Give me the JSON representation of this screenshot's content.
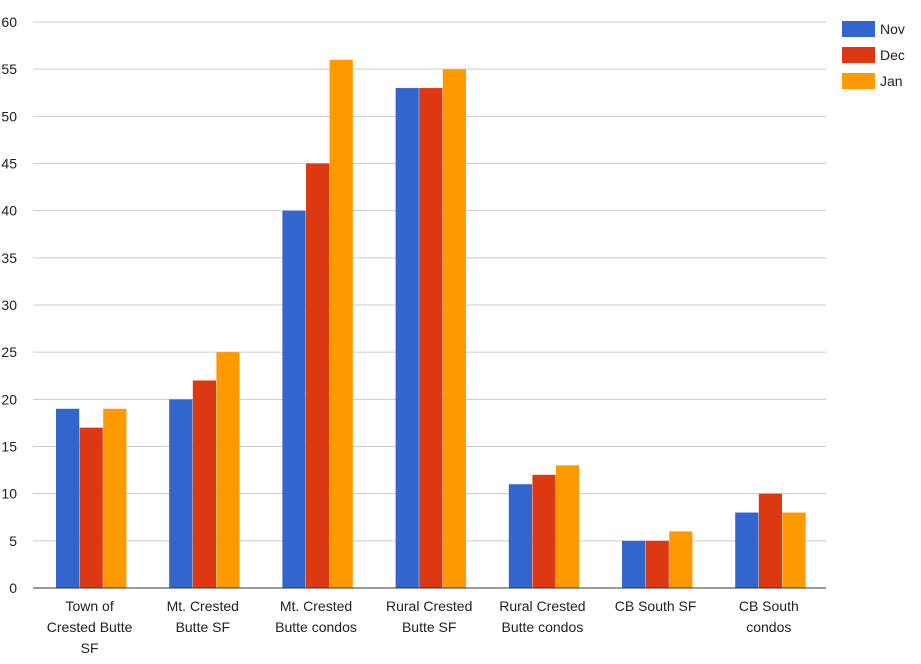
{
  "chart_data": {
    "type": "bar",
    "title": "",
    "xlabel": "",
    "ylabel": "",
    "ylim": [
      0,
      60
    ],
    "yticks": [
      0,
      5,
      10,
      15,
      20,
      25,
      30,
      35,
      40,
      45,
      50,
      55,
      60
    ],
    "grid": true,
    "legend_position": "top-right",
    "categories": [
      [
        "Town of",
        "Crested Butte",
        "SF"
      ],
      [
        "Mt. Crested",
        "Butte SF"
      ],
      [
        "Mt. Crested",
        "Butte condos"
      ],
      [
        "Rural Crested",
        "Butte SF"
      ],
      [
        "Rural Crested",
        "Butte condos"
      ],
      [
        "CB South SF"
      ],
      [
        "CB South",
        "condos"
      ]
    ],
    "series": [
      {
        "name": "Nov",
        "color": "#3366cc",
        "values": [
          19,
          20,
          40,
          53,
          11,
          5,
          8
        ]
      },
      {
        "name": "Dec",
        "color": "#dc3912",
        "values": [
          17,
          22,
          45,
          53,
          12,
          5,
          10
        ]
      },
      {
        "name": "Jan",
        "color": "#ff9900",
        "values": [
          19,
          25,
          56,
          55,
          13,
          6,
          8
        ]
      }
    ]
  }
}
